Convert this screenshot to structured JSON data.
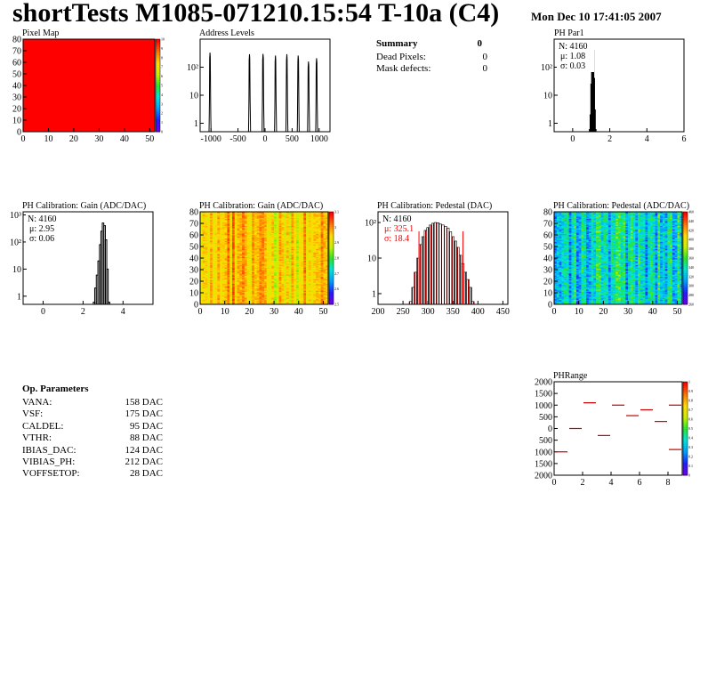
{
  "header": {
    "title": "shortTests M1085-071210.15:54 T-10a (C4)",
    "date": "Mon Dec 10 17:41:05 2007"
  },
  "summary": {
    "heading": "Summary",
    "heading_value": "0",
    "rows": [
      {
        "label": "Dead Pixels:",
        "value": "0"
      },
      {
        "label": "Mask defects:",
        "value": "0"
      }
    ]
  },
  "op_params": {
    "heading": "Op. Parameters",
    "rows": [
      {
        "label": "VANA:",
        "value": "158 DAC"
      },
      {
        "label": "VSF:",
        "value": "175 DAC"
      },
      {
        "label": "CALDEL:",
        "value": "95 DAC"
      },
      {
        "label": "VTHR:",
        "value": "88 DAC"
      },
      {
        "label": "IBIAS_DAC:",
        "value": "124 DAC"
      },
      {
        "label": "VIBIAS_PH:",
        "value": "212 DAC"
      },
      {
        "label": "VOFFSETOP:",
        "value": "28 DAC"
      }
    ]
  },
  "colors": {
    "hist_line": "#000000",
    "red": "#ff0000",
    "hatch": "#aa0000",
    "seg": "#cc0000"
  },
  "chart_data": [
    {
      "id": "pixel-map",
      "type": "heatmap",
      "title": "Pixel Map",
      "xlim": [
        0,
        52
      ],
      "ylim": [
        0,
        80
      ],
      "xticks": [
        0,
        10,
        20,
        30,
        40,
        50
      ],
      "yticks": [
        0,
        10,
        20,
        30,
        40,
        50,
        60,
        70,
        80
      ],
      "fill_value": 10,
      "zlim": [
        0,
        10
      ],
      "zticks": [
        0,
        1,
        2,
        3,
        4,
        5,
        6,
        7,
        8,
        9,
        10
      ]
    },
    {
      "id": "address-levels",
      "type": "bar",
      "title": "Address Levels",
      "xlim": [
        -1200,
        1200
      ],
      "ylim": [
        0.5,
        1000
      ],
      "log_y": true,
      "xticks": [
        -1000,
        -500,
        0,
        500,
        1000
      ],
      "yticks": [
        1,
        10,
        100
      ],
      "ytick_labels": [
        "1",
        "10",
        "10²"
      ],
      "peaks": [
        [
          -1010,
          330
        ],
        [
          -280,
          290
        ],
        [
          -30,
          300
        ],
        [
          200,
          260
        ],
        [
          410,
          290
        ],
        [
          620,
          260
        ],
        [
          810,
          160
        ],
        [
          960,
          210
        ]
      ]
    },
    {
      "id": "ph-par1",
      "type": "bar",
      "title": "PH Par1",
      "xlim": [
        -1,
        6
      ],
      "ylim": [
        0.5,
        1000
      ],
      "log_y": true,
      "xticks": [
        0,
        2,
        4,
        6
      ],
      "yticks": [
        1,
        10,
        100
      ],
      "ytick_labels": [
        "1",
        "10",
        "10²"
      ],
      "stats": {
        "N": "N: 4160",
        "mu": "μ: 1.08",
        "sigma": "σ: 0.03"
      },
      "bins": [
        [
          0.92,
          0.6
        ],
        [
          0.96,
          2
        ],
        [
          1.0,
          25
        ],
        [
          1.04,
          350
        ],
        [
          1.08,
          700
        ],
        [
          1.12,
          400
        ],
        [
          1.16,
          40
        ],
        [
          1.2,
          3
        ],
        [
          1.24,
          0.6
        ]
      ]
    },
    {
      "id": "ph-gain-hist",
      "type": "bar",
      "title": "PH Calibration: Gain (ADC/DAC)",
      "xlim": [
        -1,
        5.5
      ],
      "ylim": [
        0.5,
        1300
      ],
      "log_y": true,
      "xticks": [
        0,
        2,
        4
      ],
      "yticks": [
        1,
        10,
        100,
        1000
      ],
      "ytick_labels": [
        "1",
        "10",
        "10²",
        "10³"
      ],
      "stats": {
        "N": "N: 4160",
        "mu": "μ: 2.95",
        "sigma": "σ: 0.06"
      },
      "bins": [
        [
          2.55,
          0.6
        ],
        [
          2.62,
          2
        ],
        [
          2.7,
          6
        ],
        [
          2.78,
          20
        ],
        [
          2.86,
          80
        ],
        [
          2.93,
          250
        ],
        [
          3.0,
          500
        ],
        [
          3.08,
          400
        ],
        [
          3.15,
          120
        ],
        [
          3.22,
          10
        ],
        [
          3.3,
          0.6
        ]
      ]
    },
    {
      "id": "ph-gain-map",
      "type": "heatmap",
      "title": "PH Calibration: Gain (ADC/DAC)",
      "xlim": [
        0,
        52
      ],
      "ylim": [
        0,
        80
      ],
      "xticks": [
        0,
        10,
        20,
        30,
        40,
        50
      ],
      "yticks": [
        0,
        10,
        20,
        30,
        40,
        50,
        60,
        70,
        80
      ],
      "zlim": [
        2.5,
        3.1
      ],
      "zticks": [
        2.5,
        2.6,
        2.7,
        2.8,
        2.9,
        3.0,
        3.1
      ],
      "zlabels": [
        "2.5",
        "2.6",
        "2.7",
        "2.8",
        "2.9",
        "3",
        "3.1"
      ]
    },
    {
      "id": "ph-pedestal-hist",
      "type": "bar",
      "title": "PH Calibration: Pedestal (DAC)",
      "xlim": [
        200,
        460
      ],
      "ylim": [
        0.5,
        200
      ],
      "log_y": true,
      "xticks": [
        200,
        250,
        300,
        350,
        400,
        450
      ],
      "yticks": [
        1,
        10,
        100
      ],
      "ytick_labels": [
        "1",
        "10",
        "10²"
      ],
      "stats": {
        "N": "N: 4160",
        "mu": "μ: 325.1",
        "sigma": "σ: 18.4"
      },
      "cut_lines": [
        282,
        370
      ],
      "bins": [
        [
          265,
          0.6
        ],
        [
          270,
          1.5
        ],
        [
          275,
          4
        ],
        [
          280,
          10
        ],
        [
          285,
          24
        ],
        [
          290,
          40
        ],
        [
          295,
          60
        ],
        [
          300,
          72
        ],
        [
          305,
          85
        ],
        [
          310,
          95
        ],
        [
          315,
          100
        ],
        [
          320,
          98
        ],
        [
          325,
          90
        ],
        [
          330,
          85
        ],
        [
          335,
          78
        ],
        [
          340,
          70
        ],
        [
          345,
          55
        ],
        [
          350,
          40
        ],
        [
          355,
          30
        ],
        [
          360,
          20
        ],
        [
          365,
          12
        ],
        [
          370,
          7
        ],
        [
          375,
          4
        ],
        [
          380,
          2.5
        ],
        [
          385,
          1.5
        ],
        [
          390,
          0.6
        ]
      ]
    },
    {
      "id": "ph-pedestal-map",
      "type": "heatmap",
      "title": "PH Calibration: Pedestal (ADC/DAC)",
      "xlim": [
        0,
        52
      ],
      "ylim": [
        0,
        80
      ],
      "xticks": [
        0,
        10,
        20,
        30,
        40,
        50
      ],
      "yticks": [
        0,
        10,
        20,
        30,
        40,
        50,
        60,
        70,
        80
      ],
      "zlim": [
        260,
        460
      ],
      "zticks": [
        260,
        280,
        300,
        320,
        340,
        360,
        380,
        400,
        420,
        440,
        460
      ]
    },
    {
      "id": "ph-range",
      "type": "scatter",
      "title": "PHRange",
      "xlim": [
        0,
        9
      ],
      "ylim": [
        -2000,
        2000
      ],
      "xticks": [
        0,
        2,
        4,
        6,
        8
      ],
      "yticks": [
        -2000,
        -1500,
        -1000,
        -500,
        0,
        500,
        1000,
        1500,
        2000
      ],
      "ytick_labels": [
        "2000",
        "1500",
        "1000",
        "500",
        "0",
        "500",
        "1000",
        "1500",
        "2000"
      ],
      "zlim": [
        0,
        1
      ],
      "zticks": [
        0,
        0.1,
        0.2,
        0.3,
        0.4,
        0.5,
        0.6,
        0.7,
        0.8,
        0.9,
        1
      ],
      "zlabels": [
        "0",
        "0.1",
        "0.2",
        "0.3",
        "0.4",
        "0.5",
        "0.6",
        "0.7",
        "0.8",
        "0.9",
        "1"
      ],
      "segments": [
        [
          0,
          1,
          -1000
        ],
        [
          1,
          2,
          0
        ],
        [
          2,
          3,
          1100
        ],
        [
          3,
          4,
          -300
        ],
        [
          4,
          5,
          1000
        ],
        [
          5,
          6,
          550
        ],
        [
          6,
          7,
          800
        ],
        [
          7,
          8,
          300
        ],
        [
          8,
          9,
          1000
        ],
        [
          8,
          9,
          -900
        ]
      ]
    }
  ]
}
